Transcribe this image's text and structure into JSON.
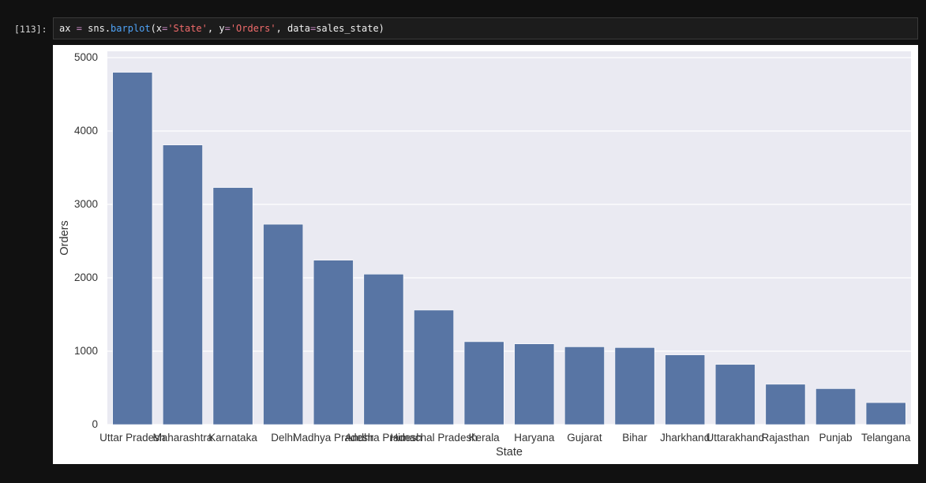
{
  "cell": {
    "prompt": "[113]:",
    "code_tokens": [
      {
        "text": "ax ",
        "cls": "tok-var"
      },
      {
        "text": "=",
        "cls": "tok-op"
      },
      {
        "text": " sns.",
        "cls": "tok-var"
      },
      {
        "text": "barplot",
        "cls": "tok-fn"
      },
      {
        "text": "(x",
        "cls": "tok-var"
      },
      {
        "text": "=",
        "cls": "tok-op"
      },
      {
        "text": "'State'",
        "cls": "tok-str"
      },
      {
        "text": ", y",
        "cls": "tok-var"
      },
      {
        "text": "=",
        "cls": "tok-op"
      },
      {
        "text": "'Orders'",
        "cls": "tok-str"
      },
      {
        "text": ", data",
        "cls": "tok-var"
      },
      {
        "text": "=",
        "cls": "tok-op"
      },
      {
        "text": "sales_state)",
        "cls": "tok-var"
      }
    ]
  },
  "colors": {
    "plot_background": "#eaeaf2",
    "bar": "#5875a4",
    "grid": "#ffffff",
    "text": "#333333"
  },
  "chart_data": {
    "type": "bar",
    "title": "",
    "xlabel": "State",
    "ylabel": "Orders",
    "ylim": [
      0,
      5000
    ],
    "yticks": [
      0,
      1000,
      2000,
      3000,
      4000,
      5000
    ],
    "grid": true,
    "categories": [
      "Uttar Pradesh",
      "Maharashtra",
      "Karnataka",
      "Delhi",
      "Madhya Pradesh",
      "Andhra Pradesh",
      "Himachal Pradesh",
      "Kerala",
      "Haryana",
      "Gujarat",
      "Bihar",
      "Jharkhand",
      "Uttarakhand",
      "Rajasthan",
      "Punjab",
      "Telangana"
    ],
    "values": [
      4800,
      3810,
      3230,
      2730,
      2240,
      2050,
      1560,
      1130,
      1100,
      1060,
      1050,
      950,
      820,
      550,
      490,
      300
    ]
  }
}
